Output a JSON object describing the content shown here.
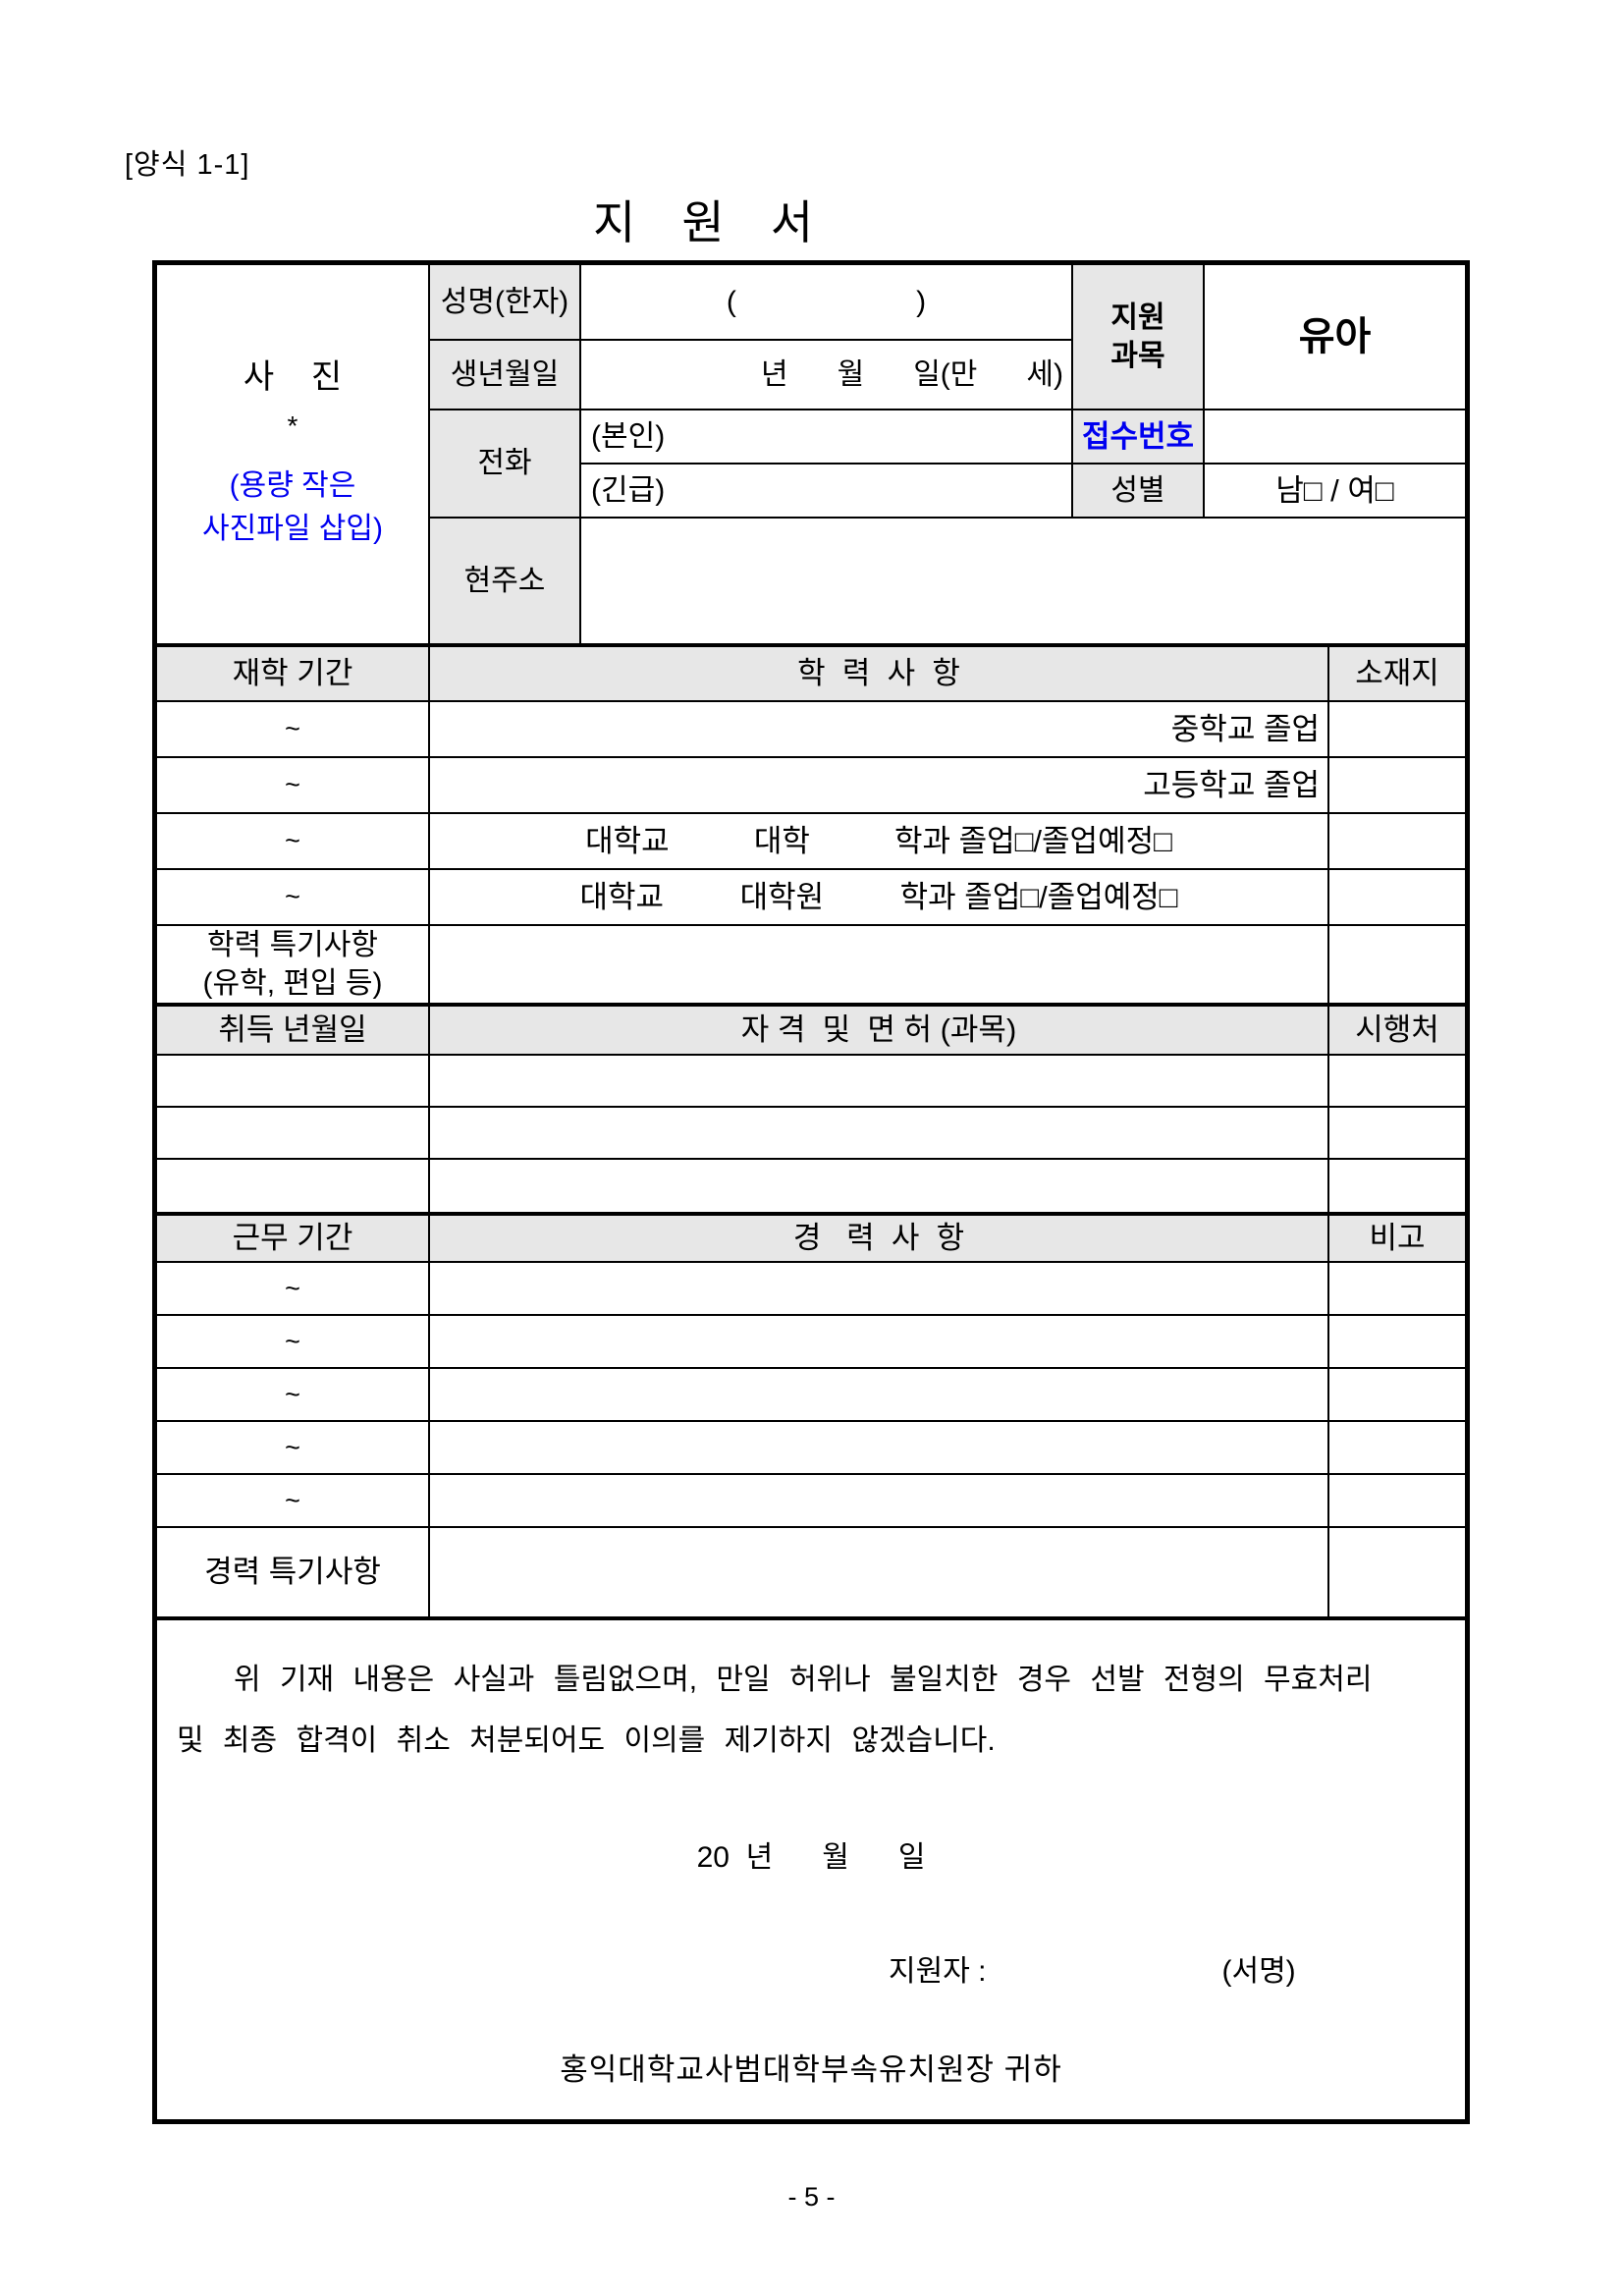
{
  "page": {
    "form_tag": "[양식 1-1]",
    "title": "지   원   서",
    "page_number": "- 5 -"
  },
  "photo": {
    "label": "사    진",
    "asterisk": "*",
    "note_line1": "(용량 작은",
    "note_line2": "사진파일 삽입)"
  },
  "personal": {
    "name_label": "성명(한자)",
    "name_placeholder": "(                      )",
    "birth_label": "생년월일",
    "birth_placeholder": "년      월      일(만      세)",
    "phone_label": "전화",
    "phone_self_label": "(본인)",
    "phone_urgent_label": "(긴급)",
    "address_label": "현주소",
    "subject_label_line1": "지원",
    "subject_label_line2": "과목",
    "subject_value": "유아",
    "receipt_label": "접수번호",
    "gender_label": "성별",
    "gender_options": "남□ / 여□"
  },
  "education": {
    "period_header": "재학 기간",
    "detail_header": "학  력  사  항",
    "location_header": "소재지",
    "tilde": "~",
    "row1_detail": "중학교 졸업",
    "row2_detail": "고등학교 졸업",
    "row3_detail": "대학교          대학          학과 졸업□/졸업예정□",
    "row4_detail": "대학교         대학원         학과 졸업□/졸업예정□",
    "special_label_line1": "학력 특기사항",
    "special_label_line2": "(유학, 편입 등)"
  },
  "qualification": {
    "date_header": "취득 년월일",
    "detail_header": "자 격  및  면 허 (과목)",
    "issuer_header": "시행처"
  },
  "career": {
    "period_header": "근무 기간",
    "detail_header": "경   력  사  항",
    "note_header": "비고",
    "tilde": "~",
    "special_label": "경력 특기사항"
  },
  "declaration": {
    "line1": "   위 기재 내용은 사실과 틀림없으며, 만일 허위나 불일치한 경우 선발 전형의 무효처리",
    "line2": "및 최종 합격이 취소 처분되어도 이의를 제기하지 않겠습니다.",
    "date_line": "20  년      월      일",
    "applicant_label": "지원자 :",
    "signature_note": "(서명)",
    "recipient": "홍익대학교사범대학부속유치원장 귀하"
  },
  "colors": {
    "header_gray": "#e7e7e7",
    "accent_blue": "#0000f0"
  }
}
